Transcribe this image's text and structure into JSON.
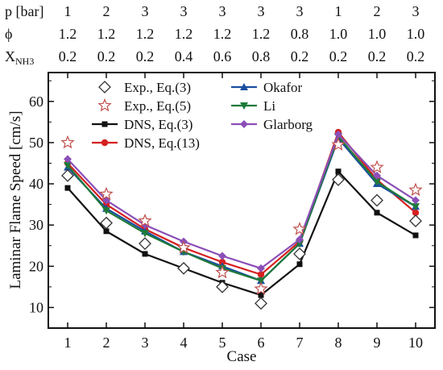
{
  "chart_data": {
    "type": "line",
    "xlabel": "Case",
    "ylabel": "Laminar Flame Speed [cm/s]",
    "xlim": [
      0.5,
      10.5
    ],
    "ylim": [
      5,
      67
    ],
    "x": [
      1,
      2,
      3,
      4,
      5,
      6,
      7,
      8,
      9,
      10
    ],
    "x_ticks": [
      "1",
      "2",
      "3",
      "4",
      "5",
      "6",
      "7",
      "8",
      "9",
      "10"
    ],
    "y_ticks": [
      10,
      20,
      30,
      40,
      50,
      60
    ],
    "grid": false,
    "legend_position": "top",
    "conditions_table": {
      "rows": [
        {
          "label": "p [bar]",
          "values": [
            "1",
            "2",
            "3",
            "3",
            "3",
            "3",
            "3",
            "1",
            "2",
            "3"
          ]
        },
        {
          "label": "ϕ",
          "values": [
            "1.2",
            "1.2",
            "1.2",
            "1.2",
            "1.2",
            "1.2",
            "0.8",
            "1.0",
            "1.0",
            "1.0"
          ]
        },
        {
          "label": "X",
          "label_subscript": "NH3",
          "values": [
            "0.2",
            "0.2",
            "0.2",
            "0.4",
            "0.6",
            "0.8",
            "0.2",
            "0.2",
            "0.2",
            "0.2"
          ]
        }
      ]
    },
    "series": [
      {
        "name": "Exp., Eq.(3)",
        "marker": "diamond-open",
        "line": false,
        "color": "#333333",
        "values": [
          42,
          30.5,
          25.5,
          19.5,
          15,
          11,
          23,
          41,
          36,
          31
        ]
      },
      {
        "name": "Exp., Eq.(5)",
        "marker": "star-open",
        "line": false,
        "color": "#c0504d",
        "values": [
          50,
          37.5,
          31,
          24.5,
          18.5,
          14.5,
          29,
          49.5,
          44,
          38.5
        ]
      },
      {
        "name": "DNS, Eq.(3)",
        "marker": "square",
        "line": true,
        "color": "#111111",
        "values": [
          39,
          28.5,
          23,
          19.5,
          16,
          13,
          20.5,
          43,
          33,
          27.5
        ]
      },
      {
        "name": "DNS, Eq.(13)",
        "marker": "circle",
        "line": true,
        "color": "#d62020",
        "values": [
          45,
          35,
          29,
          24.5,
          21,
          18,
          26,
          52.5,
          41,
          33
        ]
      },
      {
        "name": "Okafor",
        "marker": "triangle-up",
        "line": true,
        "color": "#1a4fa0",
        "values": [
          44,
          34,
          28.5,
          23.5,
          20,
          16.5,
          25.5,
          51,
          40,
          34.5
        ]
      },
      {
        "name": "Li",
        "marker": "triangle-down",
        "line": true,
        "color": "#1e7a3a",
        "values": [
          44.5,
          33.5,
          28,
          23.5,
          19.5,
          16.5,
          25.5,
          51.5,
          40.5,
          34.5
        ]
      },
      {
        "name": "Glarborg",
        "marker": "diamond",
        "line": true,
        "color": "#8b4fb8",
        "values": [
          46,
          36,
          30,
          26,
          22.5,
          19.5,
          26.5,
          52,
          42,
          36
        ]
      }
    ]
  }
}
